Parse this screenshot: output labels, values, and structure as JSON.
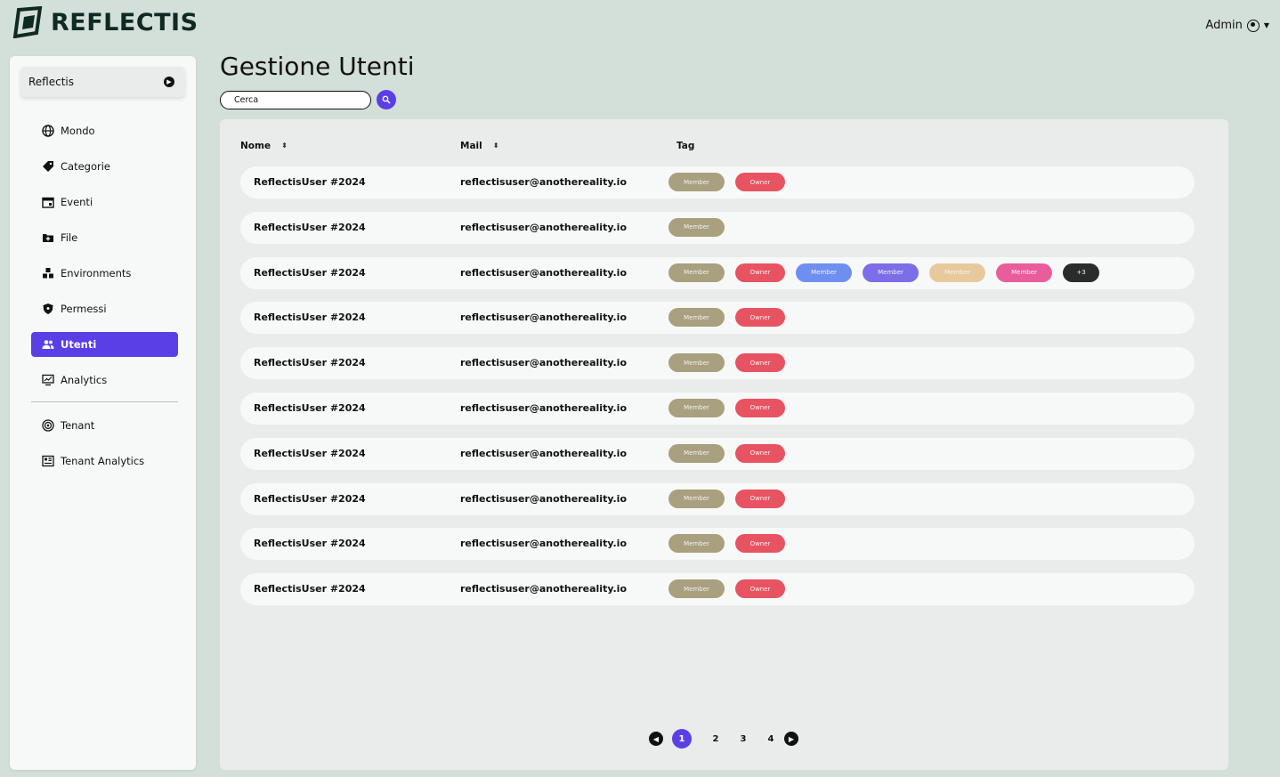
{
  "app": {
    "brand": "REFLECTIS",
    "brand_color": "#0f2a22",
    "accent": "#5b3fe6"
  },
  "header": {
    "user_label": "Admin",
    "user_icon": "user-circle-icon"
  },
  "sidebar": {
    "tenant": "Reflectis",
    "items": [
      {
        "label": "Mondo",
        "icon": "globe-icon",
        "active": false
      },
      {
        "label": "Categorie",
        "icon": "tag-icon",
        "active": false
      },
      {
        "label": "Eventi",
        "icon": "calendar-icon",
        "active": false
      },
      {
        "label": "File",
        "icon": "folder-plus-icon",
        "active": false
      },
      {
        "label": "Environments",
        "icon": "cubes-icon",
        "active": false
      },
      {
        "label": "Permessi",
        "icon": "shield-icon",
        "active": false
      },
      {
        "label": "Utenti",
        "icon": "users-icon",
        "active": true
      },
      {
        "label": "Analytics",
        "icon": "monitor-chart-icon",
        "active": false
      }
    ],
    "tenant_items": [
      {
        "label": "Tenant",
        "icon": "target-icon"
      },
      {
        "label": "Tenant Analytics",
        "icon": "dashboard-icon"
      }
    ]
  },
  "main": {
    "title": "Gestione Utenti",
    "search_placeholder": "Cerca",
    "columns": {
      "name": "Nome",
      "mail": "Mail",
      "tag": "Tag"
    },
    "rows": [
      {
        "name": "ReflectisUser #2024",
        "mail": "reflectisuser@anothereality.io",
        "tags": [
          {
            "label": "Member",
            "color": "#a8a07e"
          },
          {
            "label": "Owner",
            "color": "#e85361"
          }
        ]
      },
      {
        "name": "ReflectisUser #2024",
        "mail": "reflectisuser@anothereality.io",
        "tags": [
          {
            "label": "Member",
            "color": "#a8a07e"
          }
        ]
      },
      {
        "name": "ReflectisUser #2024",
        "mail": "reflectisuser@anothereality.io",
        "tags": [
          {
            "label": "Member",
            "color": "#a8a07e"
          },
          {
            "label": "Owner",
            "color": "#e85361"
          },
          {
            "label": "Member",
            "color": "#6f8ff0"
          },
          {
            "label": "Member",
            "color": "#7c6ee8"
          },
          {
            "label": "Member",
            "color": "#e8c99c"
          },
          {
            "label": "Member",
            "color": "#e95d9c"
          },
          {
            "label": "+3",
            "color": "#2b2b2b"
          }
        ]
      },
      {
        "name": "ReflectisUser #2024",
        "mail": "reflectisuser@anothereality.io",
        "tags": [
          {
            "label": "Member",
            "color": "#a8a07e"
          },
          {
            "label": "Owner",
            "color": "#e85361"
          }
        ]
      },
      {
        "name": "ReflectisUser #2024",
        "mail": "reflectisuser@anothereality.io",
        "tags": [
          {
            "label": "Member",
            "color": "#a8a07e"
          },
          {
            "label": "Owner",
            "color": "#e85361"
          }
        ]
      },
      {
        "name": "ReflectisUser #2024",
        "mail": "reflectisuser@anothereality.io",
        "tags": [
          {
            "label": "Member",
            "color": "#a8a07e"
          },
          {
            "label": "Owner",
            "color": "#e85361"
          }
        ]
      },
      {
        "name": "ReflectisUser #2024",
        "mail": "reflectisuser@anothereality.io",
        "tags": [
          {
            "label": "Member",
            "color": "#a8a07e"
          },
          {
            "label": "Owner",
            "color": "#e85361"
          }
        ]
      },
      {
        "name": "ReflectisUser #2024",
        "mail": "reflectisuser@anothereality.io",
        "tags": [
          {
            "label": "Member",
            "color": "#a8a07e"
          },
          {
            "label": "Owner",
            "color": "#e85361"
          }
        ]
      },
      {
        "name": "ReflectisUser #2024",
        "mail": "reflectisuser@anothereality.io",
        "tags": [
          {
            "label": "Member",
            "color": "#a8a07e"
          },
          {
            "label": "Owner",
            "color": "#e85361"
          }
        ]
      },
      {
        "name": "ReflectisUser #2024",
        "mail": "reflectisuser@anothereality.io",
        "tags": [
          {
            "label": "Member",
            "color": "#a8a07e"
          },
          {
            "label": "Owner",
            "color": "#e85361"
          }
        ]
      }
    ],
    "pagination": {
      "pages": [
        "1",
        "2",
        "3",
        "4"
      ],
      "current": "1"
    }
  }
}
